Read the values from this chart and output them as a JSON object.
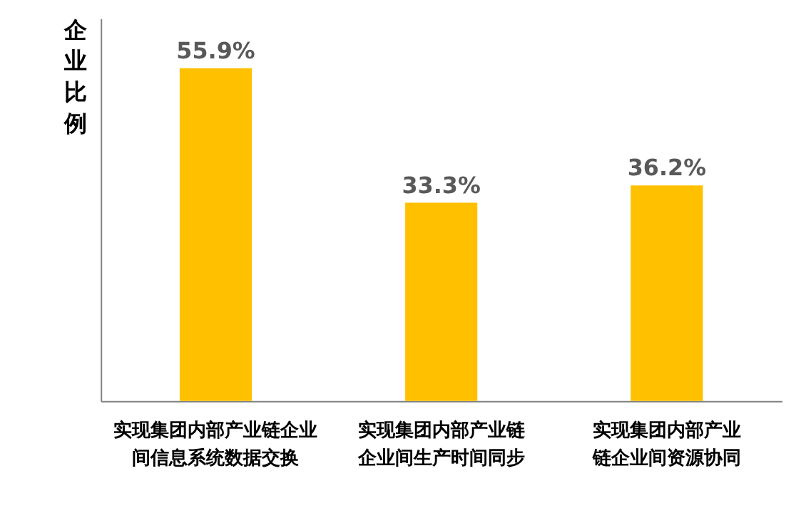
{
  "chart_data": {
    "type": "bar",
    "ylabel": "企业比例",
    "categories": [
      "实现集团内部产业链企业间信息系统数据交换",
      "实现集团内部产业链企业间生产时间同步",
      "实现集团内部产业链企业间资源协同"
    ],
    "values": [
      55.9,
      33.3,
      36.2
    ],
    "color": "#ffc000",
    "value_labels": [
      "55.9%",
      "33.3%",
      "36.2%"
    ]
  }
}
